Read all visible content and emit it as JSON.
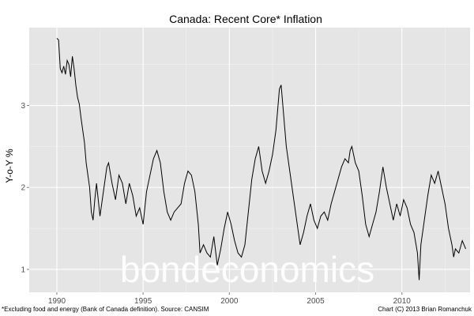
{
  "chart_data": {
    "type": "line",
    "title": "Canada: Recent Core* Inflation",
    "xlabel": "",
    "ylabel": "Y-o-Y %",
    "xlim": [
      1988.4,
      2013.95
    ],
    "ylim": [
      0.72,
      3.95
    ],
    "x_ticks": [
      1990,
      1995,
      2000,
      2005,
      2010
    ],
    "y_ticks": [
      1,
      2,
      3
    ],
    "grid": true,
    "watermark": "bondeconomics",
    "series": [
      {
        "color": "#000000",
        "points": [
          [
            1990.0,
            3.82
          ],
          [
            1990.1,
            3.8
          ],
          [
            1990.2,
            3.45
          ],
          [
            1990.3,
            3.4
          ],
          [
            1990.4,
            3.48
          ],
          [
            1990.5,
            3.38
          ],
          [
            1990.6,
            3.55
          ],
          [
            1990.7,
            3.5
          ],
          [
            1990.8,
            3.35
          ],
          [
            1990.9,
            3.6
          ],
          [
            1991.0,
            3.45
          ],
          [
            1991.1,
            3.25
          ],
          [
            1991.2,
            3.1
          ],
          [
            1991.3,
            3.02
          ],
          [
            1991.4,
            2.85
          ],
          [
            1991.5,
            2.7
          ],
          [
            1991.6,
            2.55
          ],
          [
            1991.7,
            2.3
          ],
          [
            1991.8,
            2.15
          ],
          [
            1991.9,
            2.0
          ],
          [
            1992.0,
            1.7
          ],
          [
            1992.1,
            1.6
          ],
          [
            1992.2,
            1.85
          ],
          [
            1992.3,
            2.05
          ],
          [
            1992.4,
            1.85
          ],
          [
            1992.5,
            1.65
          ],
          [
            1992.6,
            1.8
          ],
          [
            1992.7,
            1.95
          ],
          [
            1992.8,
            2.1
          ],
          [
            1992.9,
            2.25
          ],
          [
            1993.0,
            2.3
          ],
          [
            1993.2,
            2.05
          ],
          [
            1993.4,
            1.85
          ],
          [
            1993.6,
            2.15
          ],
          [
            1993.8,
            2.05
          ],
          [
            1994.0,
            1.8
          ],
          [
            1994.2,
            2.05
          ],
          [
            1994.4,
            1.9
          ],
          [
            1994.6,
            1.65
          ],
          [
            1994.8,
            1.75
          ],
          [
            1995.0,
            1.55
          ],
          [
            1995.2,
            1.95
          ],
          [
            1995.4,
            2.15
          ],
          [
            1995.6,
            2.35
          ],
          [
            1995.8,
            2.45
          ],
          [
            1996.0,
            2.3
          ],
          [
            1996.2,
            1.95
          ],
          [
            1996.4,
            1.7
          ],
          [
            1996.6,
            1.6
          ],
          [
            1996.8,
            1.7
          ],
          [
            1997.0,
            1.75
          ],
          [
            1997.2,
            1.8
          ],
          [
            1997.4,
            2.05
          ],
          [
            1997.6,
            2.2
          ],
          [
            1997.8,
            2.15
          ],
          [
            1998.0,
            1.95
          ],
          [
            1998.1,
            1.75
          ],
          [
            1998.2,
            1.55
          ],
          [
            1998.3,
            1.2
          ],
          [
            1998.5,
            1.3
          ],
          [
            1998.7,
            1.2
          ],
          [
            1998.9,
            1.15
          ],
          [
            1999.1,
            1.4
          ],
          [
            1999.3,
            1.05
          ],
          [
            1999.5,
            1.25
          ],
          [
            1999.7,
            1.5
          ],
          [
            1999.9,
            1.7
          ],
          [
            2000.1,
            1.55
          ],
          [
            2000.3,
            1.35
          ],
          [
            2000.5,
            1.2
          ],
          [
            2000.7,
            1.15
          ],
          [
            2000.9,
            1.3
          ],
          [
            2001.1,
            1.7
          ],
          [
            2001.3,
            2.1
          ],
          [
            2001.5,
            2.35
          ],
          [
            2001.7,
            2.5
          ],
          [
            2001.9,
            2.2
          ],
          [
            2002.1,
            2.05
          ],
          [
            2002.3,
            2.2
          ],
          [
            2002.5,
            2.4
          ],
          [
            2002.7,
            2.7
          ],
          [
            2002.9,
            3.2
          ],
          [
            2003.0,
            3.25
          ],
          [
            2003.1,
            3.0
          ],
          [
            2003.3,
            2.5
          ],
          [
            2003.5,
            2.2
          ],
          [
            2003.7,
            1.9
          ],
          [
            2003.9,
            1.6
          ],
          [
            2004.1,
            1.3
          ],
          [
            2004.3,
            1.45
          ],
          [
            2004.5,
            1.65
          ],
          [
            2004.7,
            1.8
          ],
          [
            2004.9,
            1.6
          ],
          [
            2005.1,
            1.5
          ],
          [
            2005.3,
            1.65
          ],
          [
            2005.5,
            1.7
          ],
          [
            2005.7,
            1.6
          ],
          [
            2005.9,
            1.8
          ],
          [
            2006.1,
            1.95
          ],
          [
            2006.3,
            2.1
          ],
          [
            2006.5,
            2.25
          ],
          [
            2006.7,
            2.35
          ],
          [
            2006.9,
            2.3
          ],
          [
            2007.0,
            2.45
          ],
          [
            2007.1,
            2.5
          ],
          [
            2007.3,
            2.3
          ],
          [
            2007.5,
            2.2
          ],
          [
            2007.7,
            1.9
          ],
          [
            2007.9,
            1.55
          ],
          [
            2008.1,
            1.4
          ],
          [
            2008.3,
            1.55
          ],
          [
            2008.5,
            1.7
          ],
          [
            2008.7,
            1.95
          ],
          [
            2008.9,
            2.25
          ],
          [
            2009.1,
            2.0
          ],
          [
            2009.3,
            1.8
          ],
          [
            2009.5,
            1.6
          ],
          [
            2009.7,
            1.8
          ],
          [
            2009.9,
            1.65
          ],
          [
            2010.1,
            1.85
          ],
          [
            2010.3,
            1.75
          ],
          [
            2010.5,
            1.55
          ],
          [
            2010.7,
            1.45
          ],
          [
            2010.9,
            1.2
          ],
          [
            2011.0,
            0.87
          ],
          [
            2011.1,
            1.3
          ],
          [
            2011.3,
            1.6
          ],
          [
            2011.5,
            1.9
          ],
          [
            2011.7,
            2.15
          ],
          [
            2011.9,
            2.05
          ],
          [
            2012.1,
            2.2
          ],
          [
            2012.3,
            2.0
          ],
          [
            2012.5,
            1.8
          ],
          [
            2012.7,
            1.5
          ],
          [
            2012.9,
            1.3
          ],
          [
            2013.0,
            1.15
          ],
          [
            2013.1,
            1.25
          ],
          [
            2013.3,
            1.2
          ],
          [
            2013.5,
            1.35
          ],
          [
            2013.7,
            1.25
          ]
        ]
      }
    ]
  },
  "footer": {
    "note": "*Excluding food and energy (Bank of Canada definition). Source: CANSIM",
    "credit": "Chart (C) 2013 Brian Romanchuk"
  }
}
